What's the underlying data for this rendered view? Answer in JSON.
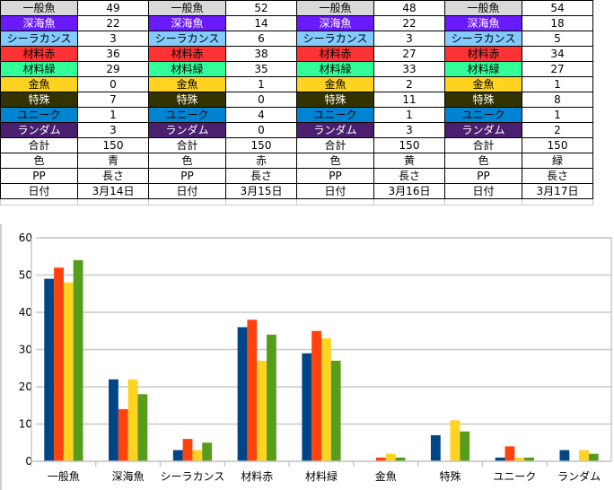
{
  "rows": [
    {
      "name": "一般魚",
      "bg": "#d9d9d9",
      "fg": "#000000"
    },
    {
      "name": "深海魚",
      "bg": "#6a1aff",
      "fg": "#ffffff"
    },
    {
      "name": "シーラカンス",
      "bg": "#83caff",
      "fg": "#000000"
    },
    {
      "name": "材料赤",
      "bg": "#ff3333",
      "fg": "#000000"
    },
    {
      "name": "材料緑",
      "bg": "#33ff99",
      "fg": "#000000"
    },
    {
      "name": "金魚",
      "bg": "#ffd320",
      "fg": "#000000"
    },
    {
      "name": "特殊",
      "bg": "#333300",
      "fg": "#ffffff"
    },
    {
      "name": "ユニーク",
      "bg": "#0084d1",
      "fg": "#000000"
    },
    {
      "name": "ランダム",
      "bg": "#4b1f6f",
      "fg": "#ffffff"
    }
  ],
  "footer_labels": {
    "total": "合計",
    "color": "色",
    "pp": "PP",
    "date": "日付"
  },
  "groups": [
    {
      "values": [
        49,
        22,
        3,
        36,
        29,
        0,
        7,
        1,
        3
      ],
      "total": "150",
      "color": "青",
      "pp": "長さ",
      "date": "3月14日"
    },
    {
      "values": [
        52,
        14,
        6,
        38,
        35,
        1,
        0,
        4,
        0
      ],
      "total": "150",
      "color": "赤",
      "pp": "長さ",
      "date": "3月15日"
    },
    {
      "values": [
        48,
        22,
        3,
        27,
        33,
        2,
        11,
        1,
        3
      ],
      "total": "150",
      "color": "黄",
      "pp": "長さ",
      "date": "3月16日"
    },
    {
      "values": [
        54,
        18,
        5,
        34,
        27,
        1,
        8,
        1,
        2
      ],
      "total": "150",
      "color": "緑",
      "pp": "長さ",
      "date": "3月17日"
    }
  ],
  "chart_data": {
    "type": "bar",
    "categories": [
      "一般魚",
      "深海魚",
      "シーラカンス",
      "材料赤",
      "材料緑",
      "金魚",
      "特殊",
      "ユニーク",
      "ランダム"
    ],
    "series": [
      {
        "name": "3月14日",
        "color": "#004586",
        "values": [
          49,
          22,
          3,
          36,
          29,
          0,
          7,
          1,
          3
        ]
      },
      {
        "name": "3月15日",
        "color": "#ff420e",
        "values": [
          52,
          14,
          6,
          38,
          35,
          1,
          0,
          4,
          0
        ]
      },
      {
        "name": "3月16日",
        "color": "#ffd320",
        "values": [
          48,
          22,
          3,
          27,
          33,
          2,
          11,
          1,
          3
        ]
      },
      {
        "name": "3月17日",
        "color": "#579d1c",
        "values": [
          54,
          18,
          5,
          34,
          27,
          1,
          8,
          1,
          2
        ]
      }
    ],
    "yticks": [
      "0",
      "10",
      "20",
      "30",
      "40",
      "50",
      "60"
    ],
    "ylim": [
      0,
      60
    ],
    "grid": true,
    "title": "",
    "xlabel": "",
    "ylabel": ""
  }
}
